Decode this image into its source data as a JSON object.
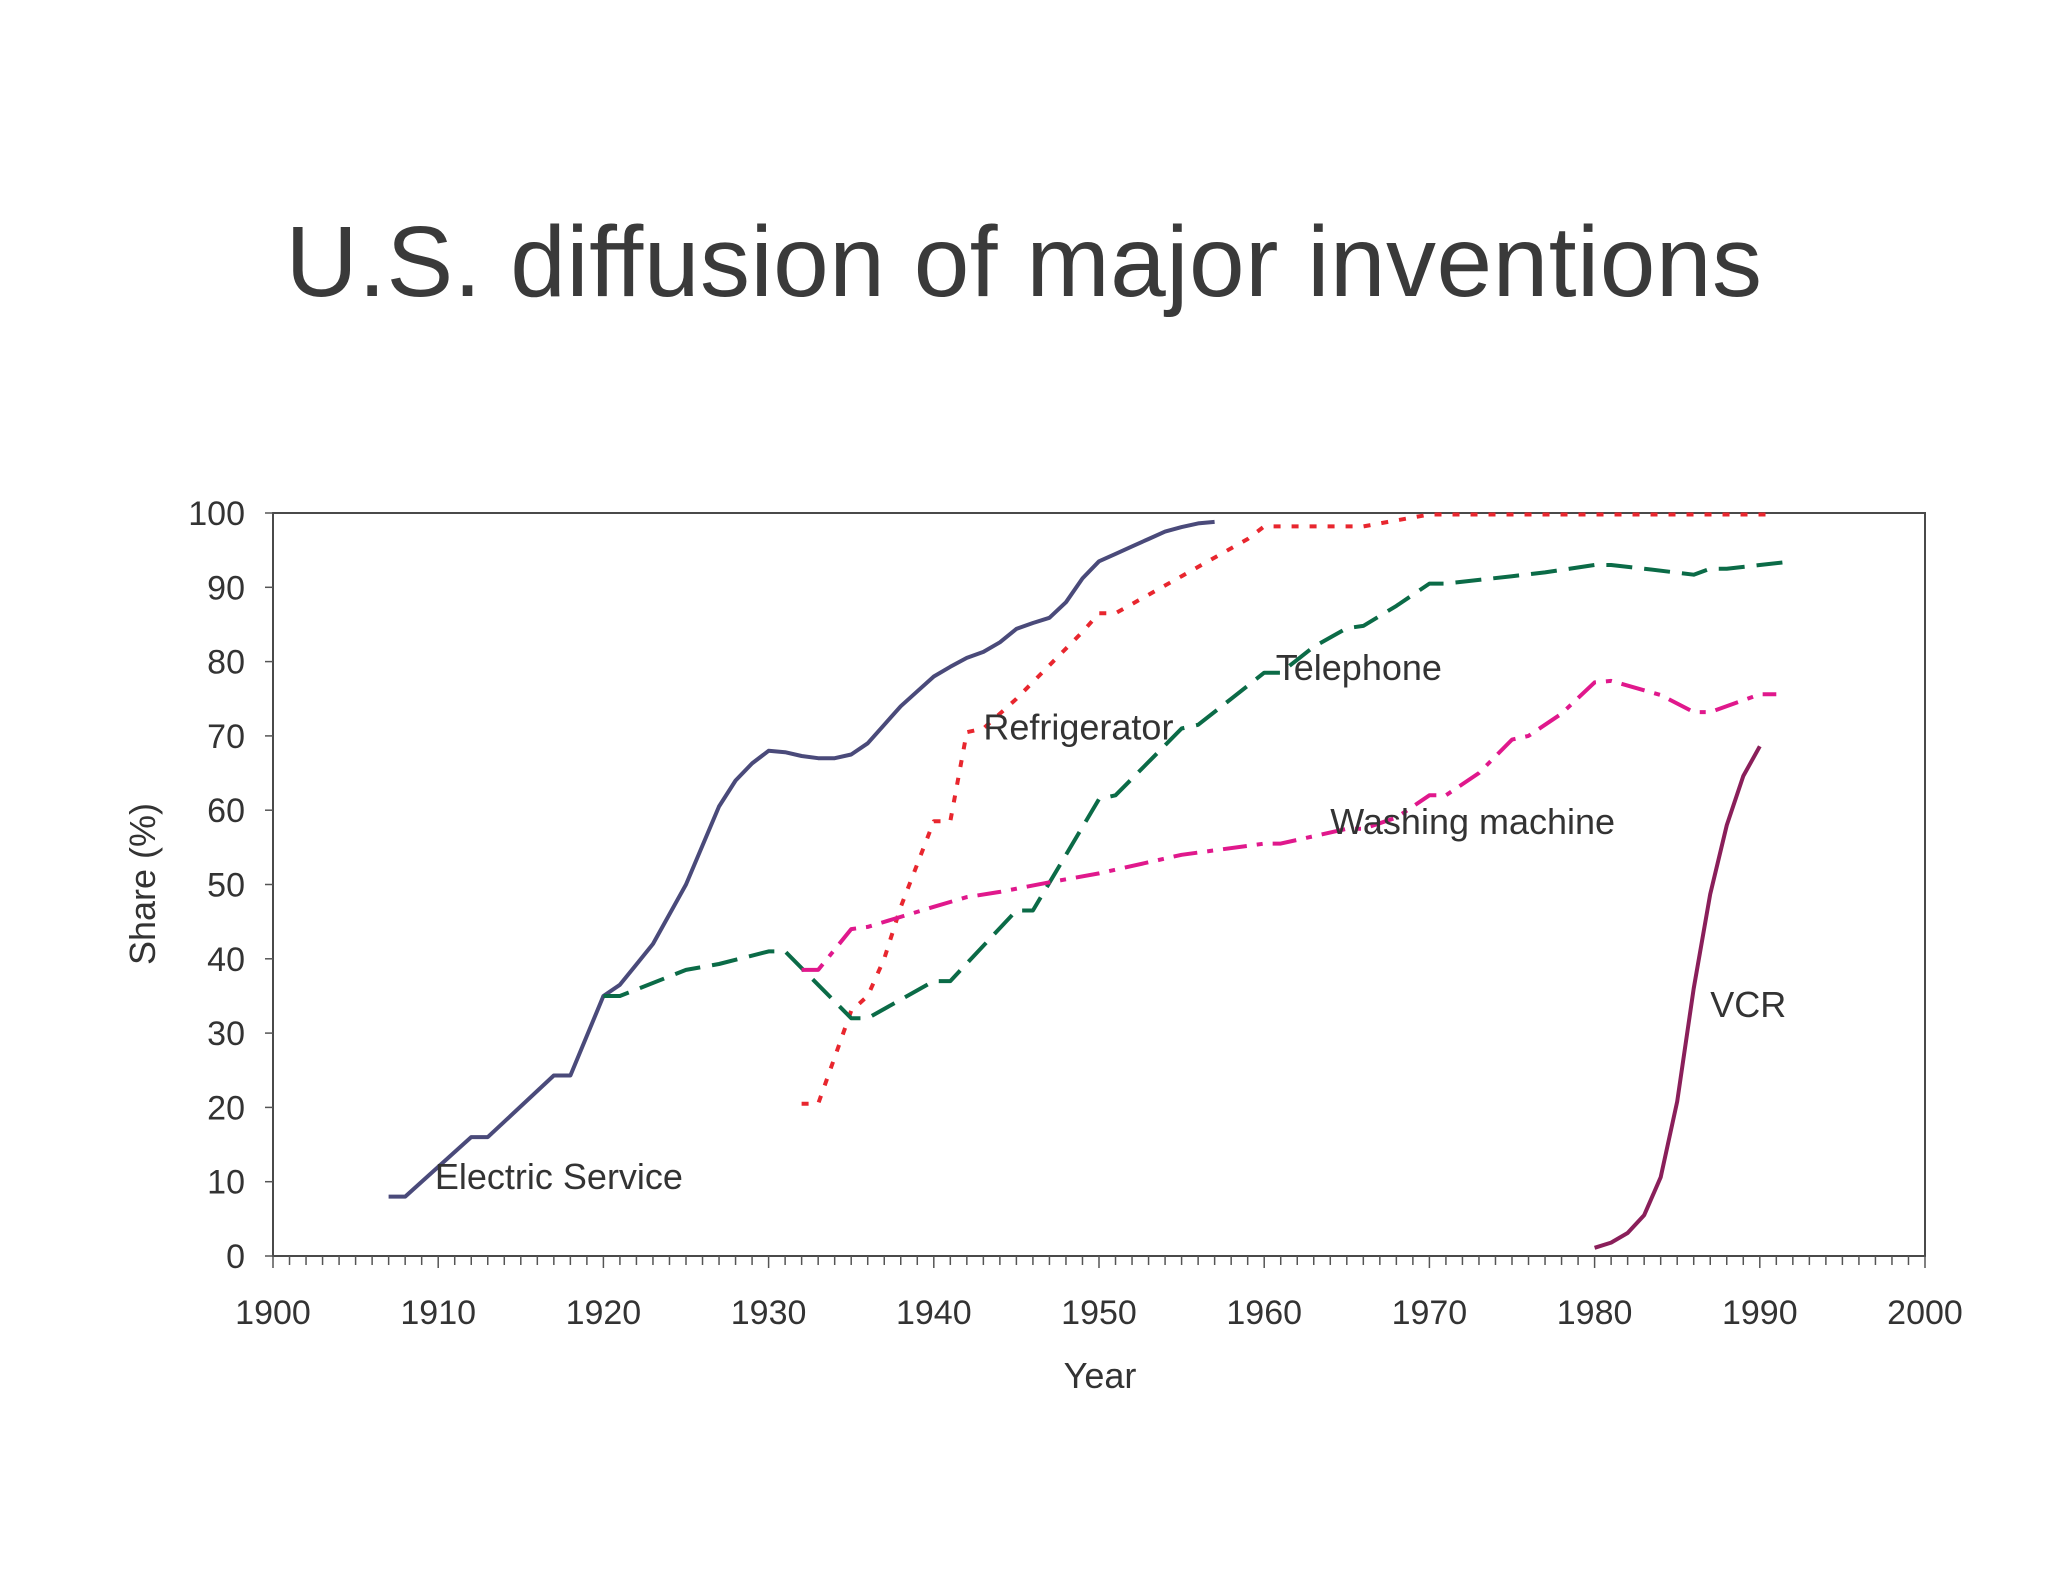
{
  "title": "U.S. diffusion of major inventions",
  "chart_data": {
    "type": "line",
    "title": "U.S. diffusion of major inventions",
    "xlabel": "Year",
    "ylabel": "Share (%)",
    "xlim": [
      1900,
      2000
    ],
    "ylim": [
      0,
      100
    ],
    "x_ticks": [
      "1900",
      "1910",
      "1920",
      "1930",
      "1940",
      "1950",
      "1960",
      "1970",
      "1980",
      "1990",
      "2000"
    ],
    "y_ticks": [
      "0",
      "10",
      "20",
      "30",
      "40",
      "50",
      "60",
      "70",
      "80",
      "90",
      "100"
    ],
    "grid": false,
    "legend": "none (direct labels)",
    "series": [
      {
        "name": "Electric Service",
        "color": "#4a4a7a",
        "style": "solid",
        "points": [
          [
            1907,
            8
          ],
          [
            1908,
            8
          ],
          [
            1912,
            16
          ],
          [
            1913,
            16
          ],
          [
            1917,
            24.3
          ],
          [
            1918,
            24.3
          ],
          [
            1920,
            35
          ],
          [
            1921,
            36.5
          ],
          [
            1923,
            42
          ],
          [
            1925,
            50
          ],
          [
            1927,
            60.5
          ],
          [
            1928,
            64
          ],
          [
            1929,
            66.3
          ],
          [
            1930,
            68
          ],
          [
            1931,
            67.8
          ],
          [
            1932,
            67.3
          ],
          [
            1933,
            67
          ],
          [
            1934,
            67
          ],
          [
            1935,
            67.5
          ],
          [
            1936,
            69
          ],
          [
            1937,
            71.5
          ],
          [
            1938,
            74
          ],
          [
            1939,
            76
          ],
          [
            1940,
            78
          ],
          [
            1941,
            79.3
          ],
          [
            1942,
            80.5
          ],
          [
            1943,
            81.3
          ],
          [
            1944,
            82.6
          ],
          [
            1945,
            84.4
          ],
          [
            1946,
            85.2
          ],
          [
            1947,
            85.9
          ],
          [
            1948,
            88
          ],
          [
            1949,
            91.2
          ],
          [
            1950,
            93.5
          ],
          [
            1951,
            94.5
          ],
          [
            1952,
            95.5
          ],
          [
            1953,
            96.5
          ],
          [
            1954,
            97.5
          ],
          [
            1955,
            98.1
          ],
          [
            1956,
            98.6
          ],
          [
            1957,
            98.8
          ]
        ]
      },
      {
        "name": "Refrigerator",
        "color": "#e8262e",
        "style": "dotted",
        "points": [
          [
            1932,
            20.5
          ],
          [
            1933,
            20.5
          ],
          [
            1935,
            33
          ],
          [
            1936,
            35
          ],
          [
            1937,
            40
          ],
          [
            1938,
            47
          ],
          [
            1940,
            58.5
          ],
          [
            1941,
            58.5
          ],
          [
            1942,
            70.5
          ],
          [
            1943,
            71
          ],
          [
            1945,
            75
          ],
          [
            1947,
            79.5
          ],
          [
            1949,
            84
          ],
          [
            1950,
            86.5
          ],
          [
            1951,
            86.5
          ],
          [
            1953,
            89
          ],
          [
            1955,
            91.5
          ],
          [
            1957,
            94
          ],
          [
            1959,
            96.5
          ],
          [
            1960,
            98.2
          ],
          [
            1961,
            98.2
          ],
          [
            1963,
            98.2
          ],
          [
            1964,
            98.2
          ],
          [
            1966,
            98.2
          ],
          [
            1968,
            99
          ],
          [
            1970,
            99.8
          ],
          [
            1980,
            99.8
          ],
          [
            1987,
            99.8
          ],
          [
            1991,
            99.8
          ]
        ]
      },
      {
        "name": "Telephone",
        "color": "#0b6b47",
        "style": "dashed",
        "points": [
          [
            1920,
            35
          ],
          [
            1921,
            35
          ],
          [
            1925,
            38.5
          ],
          [
            1927,
            39.3
          ],
          [
            1930,
            41
          ],
          [
            1931,
            41
          ],
          [
            1935,
            32
          ],
          [
            1936,
            32
          ],
          [
            1940,
            37
          ],
          [
            1941,
            37
          ],
          [
            1945,
            46.5
          ],
          [
            1946,
            46.5
          ],
          [
            1948,
            54
          ],
          [
            1950,
            61.5
          ],
          [
            1951,
            62
          ],
          [
            1953,
            66.5
          ],
          [
            1955,
            71
          ],
          [
            1956,
            71.5
          ],
          [
            1958,
            75
          ],
          [
            1960,
            78.5
          ],
          [
            1961,
            78.5
          ],
          [
            1963,
            82
          ],
          [
            1965,
            84.5
          ],
          [
            1966,
            84.8
          ],
          [
            1968,
            87.5
          ],
          [
            1970,
            90.5
          ],
          [
            1971,
            90.5
          ],
          [
            1973,
            91
          ],
          [
            1975,
            91.5
          ],
          [
            1977,
            92
          ],
          [
            1980,
            93
          ],
          [
            1981,
            93
          ],
          [
            1983,
            92.5
          ],
          [
            1986,
            91.7
          ],
          [
            1987,
            92.5
          ],
          [
            1988,
            92.5
          ],
          [
            1990,
            93
          ],
          [
            1992,
            93.5
          ]
        ]
      },
      {
        "name": "Washing machine",
        "color": "#e0188c",
        "style": "dash-dot",
        "points": [
          [
            1932,
            38.5
          ],
          [
            1933,
            38.5
          ],
          [
            1935,
            44
          ],
          [
            1936,
            44.3
          ],
          [
            1940,
            47
          ],
          [
            1942,
            48.3
          ],
          [
            1944,
            49
          ],
          [
            1947,
            50.3
          ],
          [
            1950,
            51.5
          ],
          [
            1955,
            54
          ],
          [
            1960,
            55.5
          ],
          [
            1961,
            55.5
          ],
          [
            1965,
            57.5
          ],
          [
            1966,
            57.5
          ],
          [
            1968,
            59
          ],
          [
            1970,
            62
          ],
          [
            1971,
            62
          ],
          [
            1973,
            65
          ],
          [
            1975,
            69.5
          ],
          [
            1976,
            70
          ],
          [
            1978,
            73
          ],
          [
            1980,
            77.2
          ],
          [
            1981,
            77.4
          ],
          [
            1984,
            75.5
          ],
          [
            1986,
            73.2
          ],
          [
            1987,
            73.2
          ],
          [
            1990,
            75.6
          ],
          [
            1991,
            75.6
          ]
        ]
      },
      {
        "name": "VCR",
        "color": "#8a1f5a",
        "style": "solid",
        "points": [
          [
            1980,
            1.1
          ],
          [
            1981,
            1.8
          ],
          [
            1982,
            3.1
          ],
          [
            1983,
            5.5
          ],
          [
            1984,
            10.6
          ],
          [
            1985,
            20.8
          ],
          [
            1986,
            36
          ],
          [
            1987,
            48.7
          ],
          [
            1988,
            58
          ],
          [
            1989,
            64.6
          ],
          [
            1990,
            68.6
          ]
        ]
      }
    ],
    "annotations": [
      {
        "text": "Electric Service",
        "x": 1909.8,
        "y": 9
      },
      {
        "text": "Refrigerator",
        "x": 1943.0,
        "y": 69.5
      },
      {
        "text": "Telephone",
        "x": 1960.7,
        "y": 77.5
      },
      {
        "text": "Washing machine",
        "x": 1964.0,
        "y": 56.8
      },
      {
        "text": "VCR",
        "x": 1987.0,
        "y": 32.2
      }
    ]
  }
}
